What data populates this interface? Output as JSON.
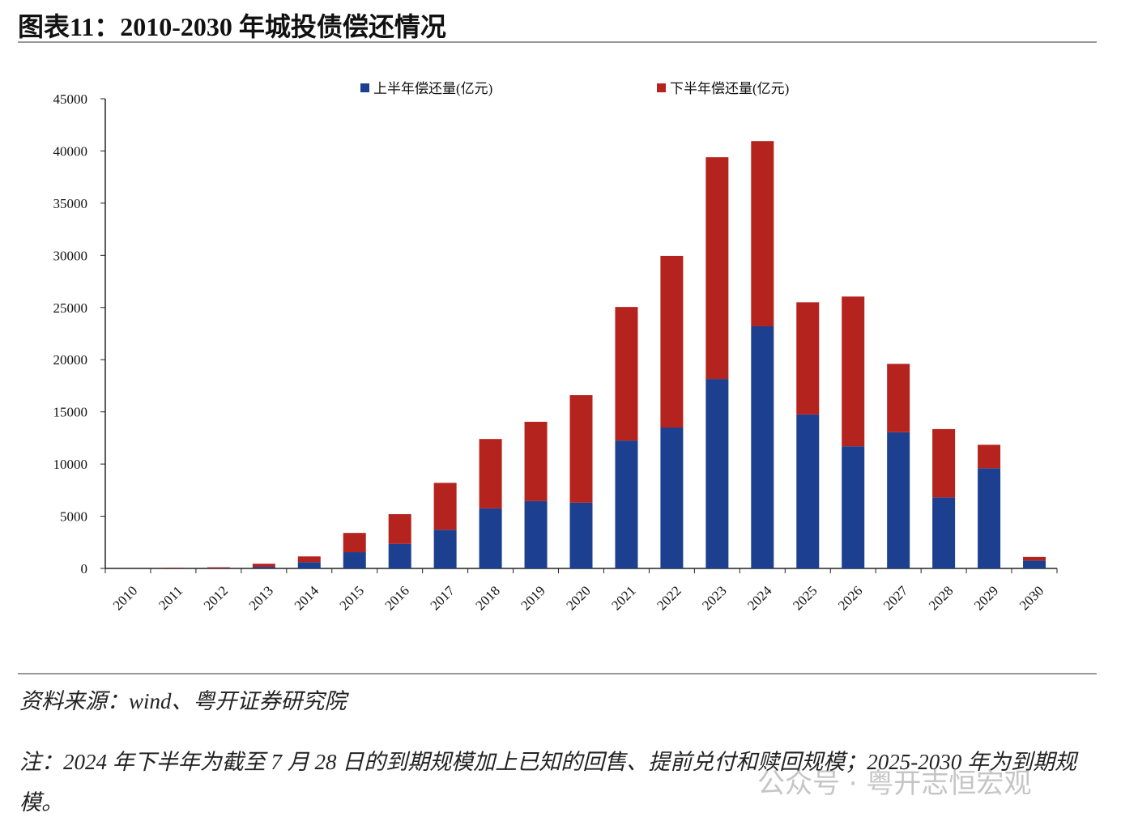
{
  "header": {
    "title": "图表11：2010-2030 年城投债偿还情况"
  },
  "chart_data": {
    "type": "bar",
    "stacked": true,
    "categories": [
      "2010",
      "2011",
      "2012",
      "2013",
      "2014",
      "2015",
      "2016",
      "2017",
      "2018",
      "2019",
      "2020",
      "2021",
      "2022",
      "2023",
      "2024",
      "2025",
      "2026",
      "2027",
      "2028",
      "2029",
      "2030"
    ],
    "series": [
      {
        "name": "上半年偿还量(亿元)",
        "color": "#1d3f8f",
        "values": [
          0,
          20,
          30,
          150,
          600,
          1550,
          2350,
          3700,
          5750,
          6450,
          6300,
          12250,
          13500,
          18150,
          23200,
          14750,
          11700,
          13050,
          6800,
          9600,
          750
        ]
      },
      {
        "name": "下半年偿还量(亿元)",
        "color": "#b5231f",
        "values": [
          0,
          50,
          80,
          300,
          550,
          1850,
          2850,
          4500,
          6650,
          7600,
          10300,
          12800,
          16450,
          21250,
          17750,
          10750,
          14350,
          6550,
          6550,
          2250,
          350
        ]
      }
    ],
    "ylim": [
      0,
      45000
    ],
    "yticks": [
      0,
      5000,
      10000,
      15000,
      20000,
      25000,
      30000,
      35000,
      40000,
      45000
    ],
    "grid": false,
    "legend": "top"
  },
  "footer": {
    "source": "资料来源：wind、粤开证券研究院",
    "note": "注：2024 年下半年为截至 7 月 28 日的到期规模加上已知的回售、提前兑付和赎回规模；2025-2030 年为到期规模。"
  },
  "watermark": "公众号 · 粤开志恒宏观"
}
